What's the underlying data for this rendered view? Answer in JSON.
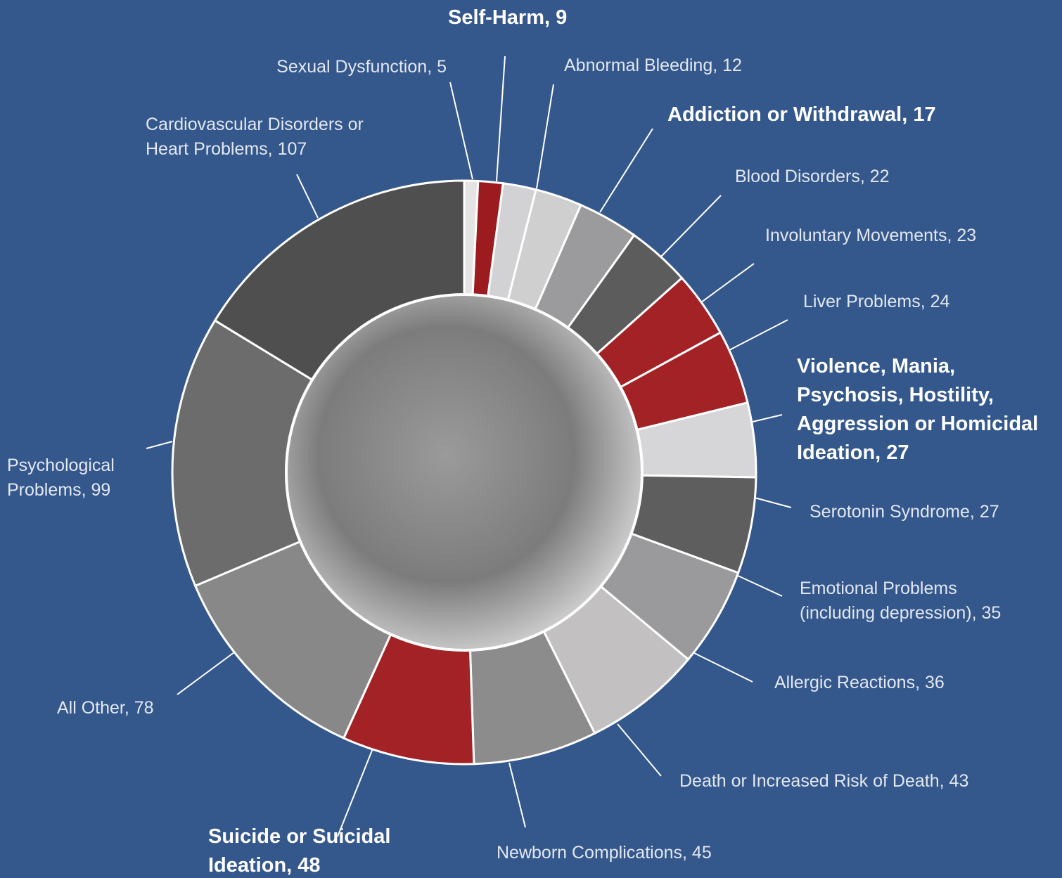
{
  "chart_data": {
    "type": "donut",
    "categories": [
      "Sexual Dysfunction",
      "Self-Harm",
      "Abnormal Bleeding",
      "Addiction or Withdrawal",
      "Blood Disorders",
      "Involuntary Movements",
      "Liver Problems",
      "Violence, Mania, Psychosis, Hostility, Aggression or Homicidal Ideation",
      "Serotonin Syndrome",
      "Emotional Problems (including depression)",
      "Allergic Reactions",
      "Death or Increased Risk of Death",
      "Newborn Complications",
      "Suicide or Suicidal Ideation",
      "All Other",
      "Psychological Problems",
      "Cardiovascular Disorders or Heart Problems"
    ],
    "values": [
      5,
      9,
      12,
      17,
      22,
      23,
      24,
      27,
      27,
      35,
      36,
      43,
      45,
      48,
      78,
      99,
      107
    ],
    "colors": [
      "#e4e4e4",
      "#9c1b1f",
      "#d2d2d4",
      "#cfcfd0",
      "#9b9a9c",
      "#5c5c5c",
      "#a22226",
      "#a22226",
      "#d6d5d7",
      "#5e5e5e",
      "#9a999b",
      "#c2c0c1",
      "#8d8c8d",
      "#a22226",
      "#888888",
      "#6c6c6c",
      "#4f4f4f"
    ],
    "bold_labels": [
      false,
      true,
      false,
      true,
      false,
      false,
      false,
      true,
      false,
      false,
      false,
      false,
      false,
      true,
      false,
      false,
      false
    ]
  }
}
